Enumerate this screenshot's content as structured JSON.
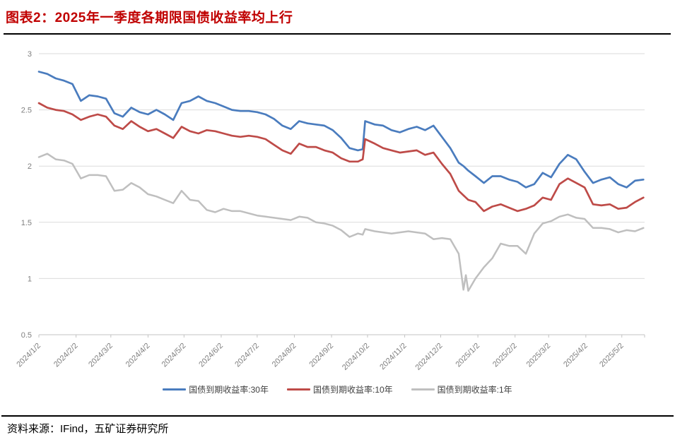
{
  "header": {
    "title": "图表2：2025年一季度各期限国债收益率均上行"
  },
  "footer": {
    "source_label": "资料来源：IFind，五矿证券研究所"
  },
  "colors": {
    "title_red": "#C00000",
    "series_30y_blue": "#4A7CBE",
    "series_10y_red": "#BE4B48",
    "series_1y_gray": "#BFBFBF",
    "gridline": "#DBDBDB",
    "axis": "#C3C3C3",
    "tick_label": "#7F7F7F",
    "legend_text": "#3F3F3F"
  },
  "chart_data": {
    "type": "line",
    "title": "",
    "xlabel": "",
    "ylabel": "",
    "ylim": [
      0.5,
      3
    ],
    "grid": true,
    "legend_position": "bottom",
    "y_ticks": [
      {
        "label": "3",
        "value": 3
      },
      {
        "label": "2.5",
        "value": 2.5
      },
      {
        "label": "2",
        "value": 2
      },
      {
        "label": "1.5",
        "value": 1.5
      },
      {
        "label": "1",
        "value": 1
      },
      {
        "label": "0.5",
        "value": 0.5
      }
    ],
    "x_ticks": [
      {
        "label": "2024/1/2",
        "t": 0
      },
      {
        "label": "2024/2/2",
        "t": 31
      },
      {
        "label": "2024/3/2",
        "t": 60
      },
      {
        "label": "2024/4/2",
        "t": 91
      },
      {
        "label": "2024/5/2",
        "t": 121
      },
      {
        "label": "2024/6/2",
        "t": 152
      },
      {
        "label": "2024/7/2",
        "t": 182
      },
      {
        "label": "2024/8/2",
        "t": 213
      },
      {
        "label": "2024/9/2",
        "t": 244
      },
      {
        "label": "2024/10/2",
        "t": 274
      },
      {
        "label": "2024/11/2",
        "t": 305
      },
      {
        "label": "2024/12/2",
        "t": 335
      },
      {
        "label": "2025/1/2",
        "t": 366
      },
      {
        "label": "2025/2/2",
        "t": 397
      },
      {
        "label": "2025/3/2",
        "t": 425
      },
      {
        "label": "2025/4/2",
        "t": 456
      },
      {
        "label": "2025/5/2",
        "t": 486
      }
    ],
    "t_unit": "days since 2024/1/2",
    "t_end": 505,
    "t": [
      0,
      7,
      14,
      21,
      28,
      35,
      42,
      49,
      56,
      63,
      70,
      77,
      84,
      91,
      98,
      105,
      112,
      119,
      126,
      133,
      140,
      147,
      154,
      161,
      168,
      175,
      182,
      189,
      196,
      203,
      210,
      217,
      224,
      231,
      238,
      245,
      252,
      259,
      266,
      270,
      272,
      280,
      287,
      294,
      301,
      308,
      315,
      322,
      329,
      336,
      343,
      350,
      354,
      356,
      358,
      364,
      371,
      378,
      385,
      392,
      399,
      406,
      413,
      420,
      427,
      434,
      441,
      448,
      455,
      462,
      469,
      476,
      483,
      490,
      497,
      504
    ],
    "series": [
      {
        "key": "30y",
        "name": "国债到期收益率:30年",
        "color": "#4A7CBE",
        "width": 2.7,
        "values": [
          2.84,
          2.82,
          2.78,
          2.76,
          2.73,
          2.58,
          2.63,
          2.62,
          2.6,
          2.47,
          2.44,
          2.52,
          2.48,
          2.46,
          2.5,
          2.46,
          2.41,
          2.56,
          2.58,
          2.62,
          2.58,
          2.56,
          2.53,
          2.5,
          2.49,
          2.49,
          2.48,
          2.46,
          2.42,
          2.36,
          2.33,
          2.4,
          2.38,
          2.37,
          2.36,
          2.32,
          2.25,
          2.16,
          2.14,
          2.15,
          2.4,
          2.37,
          2.36,
          2.32,
          2.3,
          2.33,
          2.35,
          2.32,
          2.36,
          2.26,
          2.16,
          2.03,
          2.0,
          1.98,
          1.96,
          1.91,
          1.85,
          1.91,
          1.91,
          1.88,
          1.86,
          1.81,
          1.84,
          1.94,
          1.9,
          2.02,
          2.1,
          2.06,
          1.95,
          1.85,
          1.88,
          1.9,
          1.84,
          1.81,
          1.87,
          1.88
        ]
      },
      {
        "key": "10y",
        "name": "国债到期收益率:10年",
        "color": "#BE4B48",
        "width": 2.7,
        "values": [
          2.56,
          2.52,
          2.5,
          2.49,
          2.46,
          2.41,
          2.44,
          2.46,
          2.44,
          2.36,
          2.33,
          2.4,
          2.35,
          2.31,
          2.33,
          2.29,
          2.25,
          2.35,
          2.31,
          2.29,
          2.32,
          2.31,
          2.29,
          2.27,
          2.26,
          2.27,
          2.26,
          2.24,
          2.19,
          2.14,
          2.11,
          2.2,
          2.17,
          2.17,
          2.14,
          2.12,
          2.07,
          2.04,
          2.04,
          2.06,
          2.24,
          2.2,
          2.16,
          2.14,
          2.12,
          2.13,
          2.14,
          2.1,
          2.12,
          2.02,
          1.93,
          1.78,
          1.74,
          1.72,
          1.7,
          1.68,
          1.6,
          1.64,
          1.66,
          1.63,
          1.6,
          1.62,
          1.65,
          1.72,
          1.7,
          1.84,
          1.89,
          1.85,
          1.81,
          1.66,
          1.65,
          1.66,
          1.62,
          1.63,
          1.68,
          1.72
        ]
      },
      {
        "key": "1y",
        "name": "国债到期收益率:1年",
        "color": "#BFBFBF",
        "width": 2.5,
        "values": [
          2.08,
          2.11,
          2.06,
          2.05,
          2.02,
          1.89,
          1.92,
          1.92,
          1.91,
          1.78,
          1.79,
          1.85,
          1.81,
          1.75,
          1.73,
          1.7,
          1.67,
          1.78,
          1.7,
          1.69,
          1.61,
          1.59,
          1.62,
          1.6,
          1.6,
          1.58,
          1.56,
          1.55,
          1.54,
          1.53,
          1.52,
          1.55,
          1.54,
          1.5,
          1.49,
          1.47,
          1.43,
          1.37,
          1.4,
          1.39,
          1.44,
          1.42,
          1.41,
          1.4,
          1.41,
          1.42,
          1.41,
          1.4,
          1.35,
          1.36,
          1.35,
          1.22,
          0.9,
          1.03,
          0.89,
          1.0,
          1.1,
          1.18,
          1.31,
          1.29,
          1.29,
          1.22,
          1.4,
          1.49,
          1.51,
          1.55,
          1.57,
          1.54,
          1.53,
          1.45,
          1.45,
          1.44,
          1.41,
          1.43,
          1.42,
          1.45
        ]
      }
    ]
  }
}
